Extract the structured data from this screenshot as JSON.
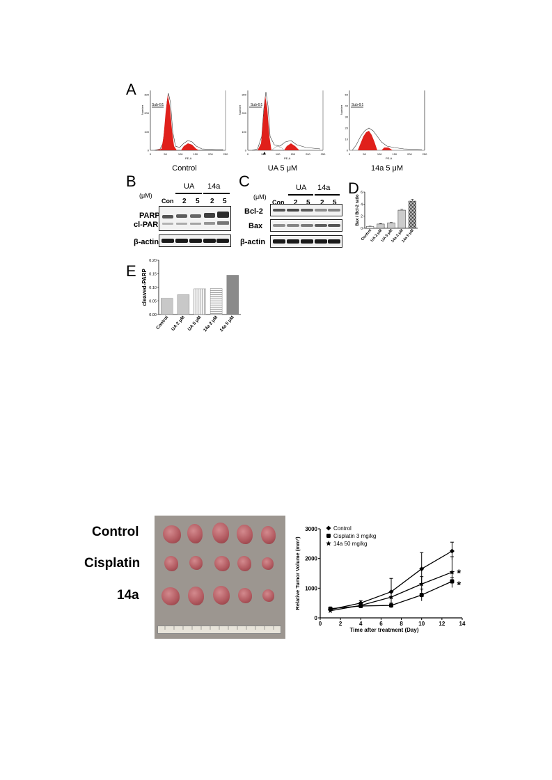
{
  "panels": {
    "a": "A",
    "b": "B",
    "c": "C",
    "d": "D",
    "e": "E"
  },
  "flow": {
    "gate_label": "Sub-G1",
    "x_axis_label": "PE-A",
    "y_axis_label": "Number",
    "x_ticks": [
      "0",
      "50",
      "100",
      "150",
      "200",
      "250"
    ],
    "histograms": [
      {
        "caption": "Control",
        "y_ticks": [
          "0",
          "100",
          "200",
          "300"
        ]
      },
      {
        "caption": "UA 5 μM",
        "y_ticks": [
          "0",
          "100",
          "200",
          "300"
        ]
      },
      {
        "caption": "14a 5 μM",
        "y_ticks": [
          "0",
          "10",
          "20",
          "30",
          "40",
          "50"
        ]
      }
    ]
  },
  "blot_b": {
    "unit": "(μM)",
    "lanes": [
      "Con",
      "2",
      "5",
      "2",
      "5"
    ],
    "groups": [
      "UA",
      "14a"
    ],
    "labels": [
      "PARP",
      "cl-PARP",
      "β-actin"
    ]
  },
  "blot_c": {
    "unit": "(μM)",
    "lanes": [
      "Con",
      "2",
      "5",
      "2",
      "5"
    ],
    "groups": [
      "UA",
      "14a"
    ],
    "labels": [
      "Bcl-2",
      "Bax",
      "β-actin"
    ]
  },
  "chart_data": [
    {
      "type": "bar",
      "panel": "D",
      "ylabel": "Bax / Bcl-2 ratio",
      "categories": [
        "Control",
        "UA 2 μM",
        "UA 5 μM",
        "14a 2 μM",
        "14a 5 μM"
      ],
      "values": [
        0.3,
        0.7,
        0.9,
        3.0,
        4.5
      ],
      "errors": [
        0.05,
        0.08,
        0.08,
        0.15,
        0.3
      ],
      "ylim": [
        0,
        6
      ],
      "yticks": [
        "0",
        "2",
        "4",
        "6"
      ]
    },
    {
      "type": "bar",
      "panel": "E",
      "ylabel": "cleaved-PARP",
      "categories": [
        "Control",
        "UA 2 μM",
        "UA 5 μM",
        "14a 2 μM",
        "14a 5 μM"
      ],
      "values": [
        0.06,
        0.073,
        0.095,
        0.096,
        0.145
      ],
      "ylim": [
        0,
        0.2
      ],
      "yticks": [
        "0.00",
        "0.05",
        "0.10",
        "0.15",
        "0.20"
      ]
    },
    {
      "type": "line",
      "panel": "tumor",
      "xlabel": "Time after treatment (Day)",
      "ylabel": "Relative Tumor Volume (mm³)",
      "xlim": [
        0,
        14
      ],
      "ylim": [
        0,
        3000
      ],
      "xticks": [
        "0",
        "2",
        "4",
        "6",
        "8",
        "10",
        "12",
        "14"
      ],
      "yticks": [
        "0",
        "1000",
        "2000",
        "3000"
      ],
      "x": [
        1,
        4,
        7,
        10,
        13
      ],
      "series": [
        {
          "name": "Control",
          "values": [
            280,
            500,
            880,
            1650,
            2250
          ],
          "errors": [
            40,
            80,
            450,
            550,
            300
          ],
          "marker": "diamond"
        },
        {
          "name": "Cisplatin  3 mg/kg",
          "values": [
            310,
            400,
            420,
            770,
            1230
          ],
          "errors": [
            40,
            50,
            80,
            200,
            120
          ],
          "marker": "circle"
        },
        {
          "name": "14a  50 mg/kg",
          "values": [
            240,
            420,
            700,
            1140,
            1540
          ],
          "errors": [
            40,
            60,
            180,
            250,
            520
          ],
          "marker": "star"
        }
      ],
      "annotations": [
        "*",
        "*"
      ]
    }
  ],
  "tumor_photo": {
    "rows": [
      "Control",
      "Cisplatin",
      "14a"
    ]
  }
}
